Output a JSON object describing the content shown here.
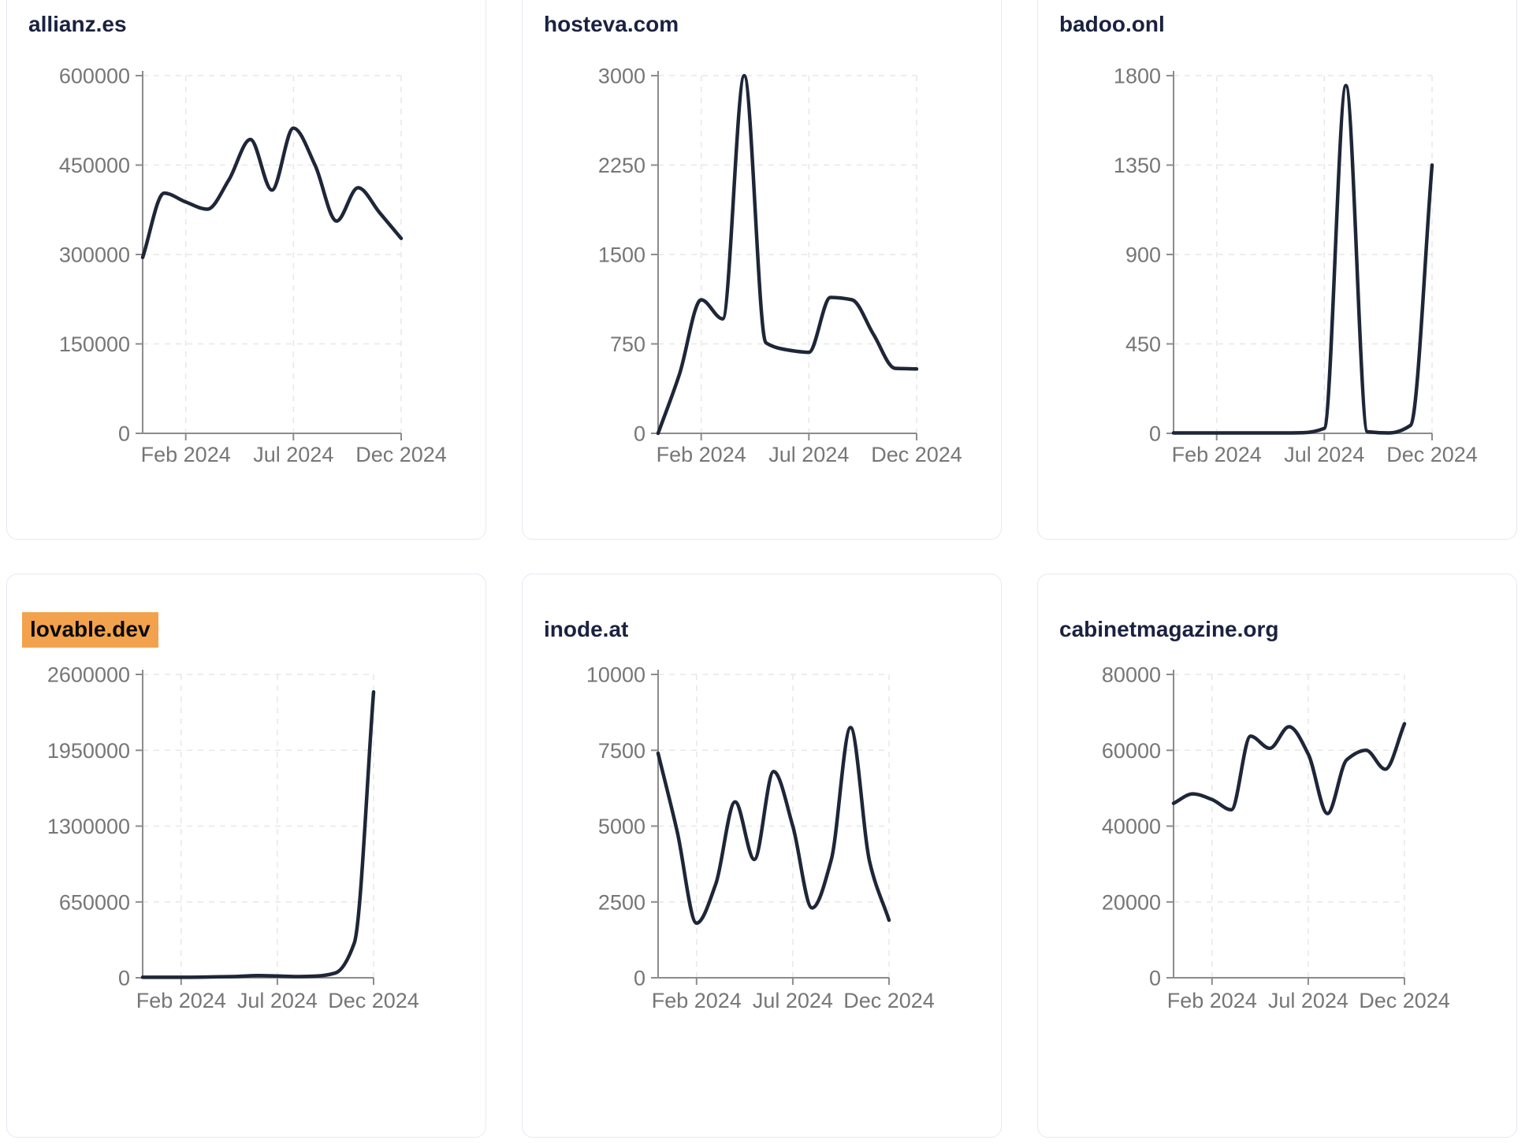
{
  "styles": {
    "page_bg": "#ffffff",
    "card_bg": "#ffffff",
    "card_border": "#e4e9f3",
    "title_color": "#1b2240",
    "line_color": "#1e2638",
    "axis_color": "#8c8c8c",
    "tick_label_color": "#767676",
    "grid_color": "#e7e7e7",
    "highlight_bg": "#f2a24d",
    "highlight_text": "#0a0a0a"
  },
  "x_tick_labels": [
    "Feb 2024",
    "Jul 2024",
    "Dec 2024"
  ],
  "chart_data": [
    {
      "type": "line",
      "title": "allianz.es",
      "highlighted": false,
      "x": [
        "Dec 2023",
        "Jan 2024",
        "Feb 2024",
        "Mar 2024",
        "Apr 2024",
        "May 2024",
        "Jun 2024",
        "Jul 2024",
        "Aug 2024",
        "Sep 2024",
        "Oct 2024",
        "Nov 2024",
        "Dec 2024"
      ],
      "values": [
        295000,
        403000,
        388000,
        376000,
        425000,
        493000,
        408000,
        512000,
        450000,
        356000,
        412000,
        370000,
        327000
      ],
      "ylim": [
        0,
        600000
      ],
      "y_ticks": [
        0,
        150000,
        300000,
        450000,
        600000
      ],
      "x_tick_indices": [
        2,
        7,
        12
      ],
      "grid": true,
      "legend": "none"
    },
    {
      "type": "line",
      "title": "hosteva.com",
      "highlighted": false,
      "x": [
        "Dec 2023",
        "Jan 2024",
        "Feb 2024",
        "Mar 2024",
        "Apr 2024",
        "May 2024",
        "Jun 2024",
        "Jul 2024",
        "Aug 2024",
        "Sep 2024",
        "Oct 2024",
        "Nov 2024",
        "Dec 2024"
      ],
      "values": [
        0,
        500,
        1120,
        960,
        3000,
        760,
        700,
        680,
        1140,
        1120,
        830,
        545,
        540
      ],
      "ylim": [
        0,
        3000
      ],
      "y_ticks": [
        0,
        750,
        1500,
        2250,
        3000
      ],
      "x_tick_indices": [
        2,
        7,
        12
      ],
      "grid": true,
      "legend": "none"
    },
    {
      "type": "line",
      "title": "badoo.onl",
      "highlighted": false,
      "x": [
        "Dec 2023",
        "Jan 2024",
        "Feb 2024",
        "Mar 2024",
        "Apr 2024",
        "May 2024",
        "Jun 2024",
        "Jul 2024",
        "Aug 2024",
        "Sep 2024",
        "Oct 2024",
        "Nov 2024",
        "Dec 2024"
      ],
      "values": [
        2,
        2,
        2,
        2,
        2,
        2,
        3,
        25,
        1750,
        8,
        2,
        40,
        1350
      ],
      "ylim": [
        0,
        1800
      ],
      "y_ticks": [
        0,
        450,
        900,
        1350,
        1800
      ],
      "x_tick_indices": [
        2,
        7,
        12
      ],
      "grid": true,
      "legend": "none"
    },
    {
      "type": "line",
      "title": "lovable.dev",
      "highlighted": true,
      "x": [
        "Dec 2023",
        "Jan 2024",
        "Feb 2024",
        "Mar 2024",
        "Apr 2024",
        "May 2024",
        "Jun 2024",
        "Jul 2024",
        "Aug 2024",
        "Sep 2024",
        "Oct 2024",
        "Nov 2024",
        "Dec 2024"
      ],
      "values": [
        4000,
        4000,
        4000,
        5000,
        8000,
        12000,
        18000,
        15000,
        10000,
        14000,
        40000,
        300000,
        2450000
      ],
      "ylim": [
        0,
        2600000
      ],
      "y_ticks": [
        0,
        650000,
        1300000,
        1950000,
        2600000
      ],
      "x_tick_indices": [
        2,
        7,
        12
      ],
      "grid": true,
      "legend": "none"
    },
    {
      "type": "line",
      "title": "inode.at",
      "highlighted": false,
      "x": [
        "Dec 2023",
        "Jan 2024",
        "Feb 2024",
        "Mar 2024",
        "Apr 2024",
        "May 2024",
        "Jun 2024",
        "Jul 2024",
        "Aug 2024",
        "Sep 2024",
        "Oct 2024",
        "Nov 2024",
        "Dec 2024"
      ],
      "values": [
        7400,
        4800,
        1800,
        3100,
        5800,
        3900,
        6800,
        5000,
        2300,
        3900,
        8250,
        3800,
        1900
      ],
      "ylim": [
        0,
        10000
      ],
      "y_ticks": [
        0,
        2500,
        5000,
        7500,
        10000
      ],
      "x_tick_indices": [
        2,
        7,
        12
      ],
      "grid": true,
      "legend": "none"
    },
    {
      "type": "line",
      "title": "cabinetmagazine.org",
      "highlighted": false,
      "x": [
        "Dec 2023",
        "Jan 2024",
        "Feb 2024",
        "Mar 2024",
        "Apr 2024",
        "May 2024",
        "Jun 2024",
        "Jul 2024",
        "Aug 2024",
        "Sep 2024",
        "Oct 2024",
        "Nov 2024",
        "Dec 2024"
      ],
      "values": [
        46000,
        48500,
        47000,
        44300,
        63700,
        60500,
        66200,
        59000,
        43300,
        57500,
        60000,
        55000,
        67000
      ],
      "ylim": [
        0,
        80000
      ],
      "y_ticks": [
        0,
        20000,
        40000,
        60000,
        80000
      ],
      "x_tick_indices": [
        2,
        7,
        12
      ],
      "grid": true,
      "legend": "none"
    }
  ]
}
